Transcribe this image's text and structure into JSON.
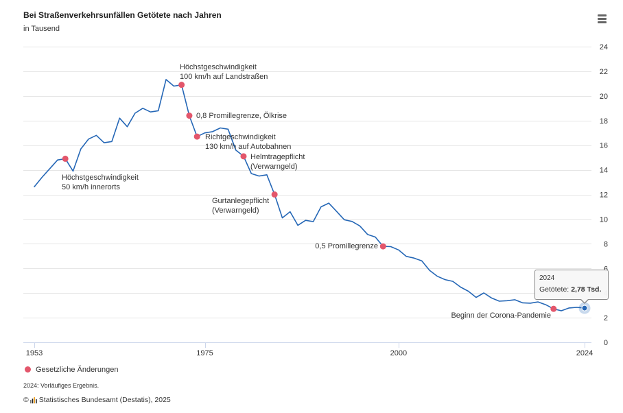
{
  "header": {
    "menu_icon": "hamburger-menu-icon"
  },
  "chart_data": {
    "type": "line",
    "title": "Bei Straßenverkehrsunfällen Getötete nach Jahren",
    "subtitle": "in Tausend",
    "xlabel": "",
    "ylabel": "",
    "xlim": [
      1953,
      2024
    ],
    "ylim": [
      0,
      24
    ],
    "x_ticks": [
      1953,
      1975,
      2000,
      2024
    ],
    "y_ticks": [
      0,
      2,
      4,
      6,
      8,
      10,
      12,
      14,
      16,
      18,
      20,
      22,
      24
    ],
    "grid": true,
    "series": [
      {
        "name": "Getötete",
        "color": "#2567b6",
        "x": [
          1953,
          1954,
          1955,
          1956,
          1957,
          1958,
          1959,
          1960,
          1961,
          1962,
          1963,
          1964,
          1965,
          1966,
          1967,
          1968,
          1969,
          1970,
          1971,
          1972,
          1973,
          1974,
          1975,
          1976,
          1977,
          1978,
          1979,
          1980,
          1981,
          1982,
          1983,
          1984,
          1985,
          1986,
          1987,
          1988,
          1989,
          1990,
          1991,
          1992,
          1993,
          1994,
          1995,
          1996,
          1997,
          1998,
          1999,
          2000,
          2001,
          2002,
          2003,
          2004,
          2005,
          2006,
          2007,
          2008,
          2009,
          2010,
          2011,
          2012,
          2013,
          2014,
          2015,
          2016,
          2017,
          2018,
          2019,
          2020,
          2021,
          2022,
          2023,
          2024
        ],
        "values": [
          12.63,
          13.4,
          14.1,
          14.8,
          14.9,
          13.9,
          15.7,
          16.5,
          16.8,
          16.2,
          16.3,
          18.2,
          17.5,
          18.6,
          19.0,
          18.7,
          18.8,
          21.33,
          20.8,
          20.9,
          18.4,
          16.7,
          17.0,
          17.1,
          17.4,
          17.3,
          15.6,
          15.1,
          13.7,
          13.5,
          13.6,
          12.0,
          10.1,
          10.6,
          9.5,
          9.9,
          9.8,
          11.0,
          11.3,
          10.63,
          9.95,
          9.81,
          9.45,
          8.76,
          8.55,
          7.79,
          7.77,
          7.5,
          6.98,
          6.84,
          6.61,
          5.84,
          5.36,
          5.09,
          4.95,
          4.48,
          4.15,
          3.65,
          4.01,
          3.6,
          3.34,
          3.38,
          3.46,
          3.21,
          3.18,
          3.28,
          3.05,
          2.72,
          2.56,
          2.79,
          2.84,
          2.78
        ]
      }
    ],
    "markers": {
      "name": "Gesetzliche Änderungen",
      "color": "#e3566b",
      "points": [
        {
          "year": 1957,
          "value": 14.9,
          "label_lines": [
            "Höchstgeschwindigkeit",
            "50 km/h innerorts"
          ]
        },
        {
          "year": 1972,
          "value": 20.9,
          "label_lines": [
            "Höchstgeschwindigkeit",
            "100 km/h auf Landstraßen"
          ]
        },
        {
          "year": 1973,
          "value": 18.4,
          "label_lines": [
            "0,8 Promillegrenze, Ölkrise"
          ]
        },
        {
          "year": 1974,
          "value": 16.7,
          "label_lines": [
            "Richtgeschwindigkeit",
            "130 km/h auf Autobahnen"
          ]
        },
        {
          "year": 1980,
          "value": 15.1,
          "label_lines": [
            "Helmtragepflicht",
            "(Verwarngeld)"
          ]
        },
        {
          "year": 1984,
          "value": 12.0,
          "label_lines": [
            "Gurtanlegepflicht",
            "(Verwarngeld)"
          ]
        },
        {
          "year": 1998,
          "value": 7.79,
          "label_lines": [
            "0,5 Promillegrenze"
          ]
        },
        {
          "year": 2020,
          "value": 2.72,
          "label_lines": [
            "Beginn der Corona-Pandemie"
          ]
        }
      ]
    },
    "highlight": {
      "year": 2024,
      "value": 2.78
    },
    "tooltip": {
      "year": "2024",
      "value_text": "2,78 Tsd."
    },
    "legend": {
      "position": "bottom-left"
    }
  },
  "footer": {
    "note": "2024: Vorläufiges Ergebnis.",
    "copyright_symbol": "©",
    "logo_icon": "destatis-logo-icon",
    "source": "Statistisches Bundesamt (Destatis), 2025"
  }
}
